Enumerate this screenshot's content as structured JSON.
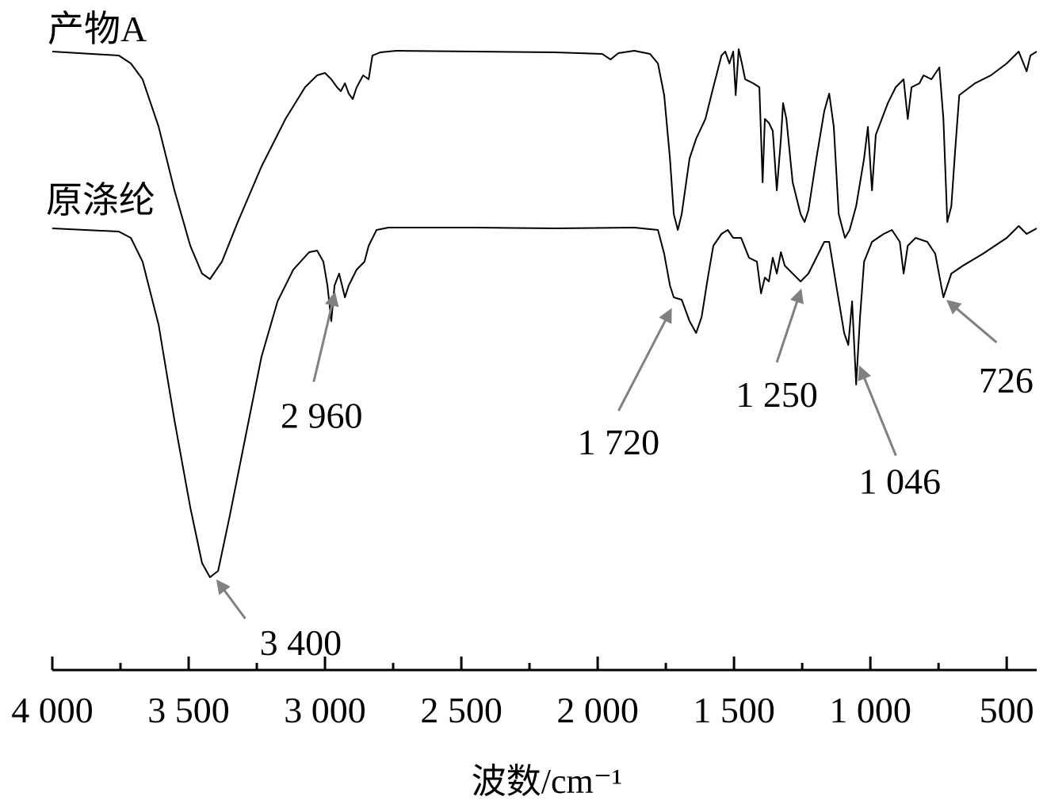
{
  "chart_data": {
    "type": "line",
    "xlabel": "波数/cm⁻¹",
    "xlim": [
      4000,
      390
    ],
    "ylim": [
      0,
      740
    ],
    "xticks": [
      {
        "value": 4000,
        "label": "4 000"
      },
      {
        "value": 3500,
        "label": "3 500"
      },
      {
        "value": 3000,
        "label": "3 000"
      },
      {
        "value": 2500,
        "label": "2 500"
      },
      {
        "value": 2000,
        "label": "2 000"
      },
      {
        "value": 1500,
        "label": "1 500"
      },
      {
        "value": 1000,
        "label": "1 000"
      },
      500
    ],
    "xminorticks": [
      3750,
      3250,
      2750,
      2250,
      1750,
      1250,
      750
    ],
    "series": [
      {
        "name": "产物A",
        "color": "#000000",
        "x": [
          4000,
          3756,
          3712,
          3669,
          3610,
          3552,
          3494,
          3451,
          3422,
          3378,
          3320,
          3233,
          3145,
          3073,
          3029,
          3000,
          2977,
          2956,
          2942,
          2927,
          2913,
          2898,
          2884,
          2860,
          2840,
          2826,
          2797,
          2738,
          2448,
          2157,
          1983,
          1953,
          1924,
          1866,
          1808,
          1779,
          1756,
          1735,
          1721,
          1706,
          1692,
          1663,
          1639,
          1605,
          1576,
          1546,
          1532,
          1517,
          1503,
          1494,
          1483,
          1471,
          1459,
          1430,
          1407,
          1395,
          1387,
          1372,
          1358,
          1343,
          1328,
          1320,
          1308,
          1285,
          1256,
          1241,
          1227,
          1198,
          1169,
          1151,
          1134,
          1116,
          1093,
          1076,
          1052,
          1023,
          1009,
          994,
          980,
          936,
          907,
          878,
          863,
          849,
          820,
          805,
          776,
          747,
          732,
          718,
          703,
          689,
          674,
          616,
          558,
          500,
          456,
          427,
          413,
          390
        ],
        "values": [
          715,
          710,
          700,
          680,
          620,
          540,
          470,
          435,
          428,
          450,
          500,
          570,
          630,
          670,
          685,
          688,
          680,
          670,
          665,
          675,
          662,
          655,
          670,
          685,
          680,
          710,
          714,
          716,
          715,
          714,
          712,
          705,
          713,
          716,
          712,
          700,
          660,
          580,
          510,
          490,
          510,
          580,
          605,
          630,
          670,
          710,
          715,
          700,
          715,
          660,
          718,
          700,
          680,
          675,
          670,
          550,
          630,
          625,
          615,
          540,
          605,
          650,
          630,
          550,
          510,
          500,
          515,
          580,
          640,
          662,
          620,
          510,
          480,
          490,
          520,
          580,
          620,
          540,
          610,
          650,
          670,
          680,
          630,
          670,
          675,
          685,
          680,
          695,
          630,
          500,
          520,
          590,
          660,
          675,
          685,
          700,
          715,
          690,
          710,
          715
        ]
      },
      {
        "name": "原涤纶",
        "color": "#000000",
        "x": [
          4000,
          3756,
          3712,
          3669,
          3610,
          3552,
          3494,
          3451,
          3422,
          3392,
          3349,
          3291,
          3233,
          3174,
          3116,
          3058,
          3029,
          3006,
          2991,
          2977,
          2965,
          2948,
          2927,
          2913,
          2884,
          2855,
          2840,
          2811,
          2767,
          2448,
          2157,
          1866,
          1779,
          1756,
          1735,
          1721,
          1692,
          1663,
          1639,
          1619,
          1596,
          1576,
          1546,
          1523,
          1503,
          1474,
          1445,
          1416,
          1401,
          1387,
          1372,
          1358,
          1343,
          1328,
          1314,
          1285,
          1256,
          1227,
          1198,
          1169,
          1151,
          1125,
          1096,
          1081,
          1067,
          1052,
          1038,
          1023,
          994,
          951,
          921,
          892,
          878,
          863,
          834,
          791,
          762,
          732,
          703,
          660,
          587,
          500,
          456,
          427,
          390
        ],
        "values": [
          492,
          488,
          480,
          450,
          370,
          250,
          140,
          70,
          52,
          60,
          130,
          230,
          330,
          400,
          440,
          462,
          464,
          450,
          420,
          375,
          420,
          435,
          405,
          420,
          440,
          450,
          470,
          490,
          493,
          493,
          492,
          493,
          490,
          460,
          420,
          405,
          402,
          375,
          360,
          380,
          430,
          470,
          485,
          490,
          480,
          480,
          455,
          450,
          410,
          430,
          425,
          455,
          435,
          462,
          445,
          435,
          425,
          435,
          455,
          475,
          475,
          420,
          360,
          345,
          400,
          295,
          380,
          450,
          475,
          485,
          490,
          475,
          435,
          470,
          480,
          475,
          460,
          405,
          435,
          445,
          460,
          480,
          495,
          485,
          492
        ]
      }
    ],
    "annotations": [
      {
        "x": 3400,
        "label": "3 400"
      },
      {
        "x": 2960,
        "label": "2 960"
      },
      {
        "x": 1720,
        "label": "1 720"
      },
      {
        "x": 1250,
        "label": "1 250"
      },
      {
        "x": 1046,
        "label": "1 046"
      },
      {
        "x": 726,
        "label": "726"
      }
    ]
  }
}
